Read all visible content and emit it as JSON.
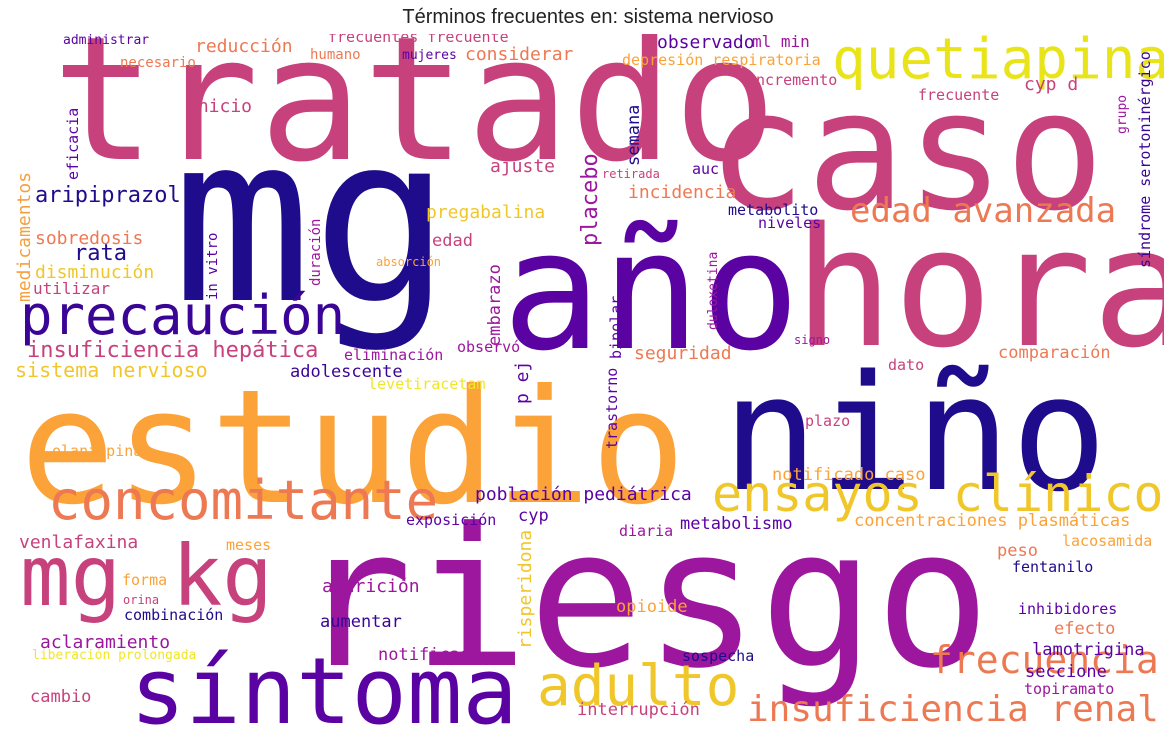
{
  "title": "Términos frecuentes en: sistema nervioso",
  "palette": [
    "#1f0c8c",
    "#5b02a3",
    "#9c179e",
    "#c7427c",
    "#ed7953",
    "#fba238",
    "#f0f921"
  ],
  "words": [
    {
      "text": "tratado",
      "color": "#c7427c"
    },
    {
      "text": "mg",
      "color": "#1f0c8c"
    },
    {
      "text": "caso",
      "color": "#c7427c"
    },
    {
      "text": "año",
      "color": "#5b02a3"
    },
    {
      "text": "hora",
      "color": "#c7427c"
    },
    {
      "text": "niño",
      "color": "#1f0c8c"
    },
    {
      "text": "estudio",
      "color": "#fba238"
    },
    {
      "text": "riesgo",
      "color": "#9c179e"
    },
    {
      "text": "síntoma",
      "color": "#5b02a3"
    },
    {
      "text": "mg kg",
      "color": "#c7427c"
    },
    {
      "text": "concomitante",
      "color": "#ed7953"
    },
    {
      "text": "precaución",
      "color": "#3a0596"
    },
    {
      "text": "quetiapina",
      "color": "#e8e419"
    },
    {
      "text": "ensayos clínico",
      "color": "#f0c72a"
    },
    {
      "text": "edad avanzada",
      "color": "#ed7953"
    },
    {
      "text": "adulto",
      "color": "#f0c72a"
    },
    {
      "text": "frecuencia",
      "color": "#ed7953"
    },
    {
      "text": "insuficiencia renal",
      "color": "#ed7953"
    },
    {
      "text": "insuficiencia hepática",
      "color": "#c7427c"
    },
    {
      "text": "sistema nervioso",
      "color": "#f0c72a"
    },
    {
      "text": "aripiprazol",
      "color": "#1f0c8c"
    },
    {
      "text": "sobredosis",
      "color": "#ed7953"
    },
    {
      "text": "rata",
      "color": "#1f0c8c"
    },
    {
      "text": "disminución",
      "color": "#f0c72a"
    },
    {
      "text": "utilizar",
      "color": "#c7427c"
    },
    {
      "text": "medicamentos",
      "color": "#f5a040"
    },
    {
      "text": "eficacia",
      "color": "#5b02a3"
    },
    {
      "text": "inicio",
      "color": "#c7427c"
    },
    {
      "text": "reducción",
      "color": "#ed7953"
    },
    {
      "text": "necesario",
      "color": "#ed7953"
    },
    {
      "text": "administrar",
      "color": "#5b02a3"
    },
    {
      "text": "humano",
      "color": "#ed7953"
    },
    {
      "text": "frecuentes frecuente",
      "color": "#c7427c"
    },
    {
      "text": "mujeres",
      "color": "#5b02a3"
    },
    {
      "text": "considerar",
      "color": "#ed7953"
    },
    {
      "text": "observado",
      "color": "#5b02a3"
    },
    {
      "text": "ml min",
      "color": "#9c179e"
    },
    {
      "text": "depresión respiratoria",
      "color": "#fba238"
    },
    {
      "text": "incremento",
      "color": "#c7427c"
    },
    {
      "text": "cyp d",
      "color": "#c7427c"
    },
    {
      "text": "frecuente",
      "color": "#c7427c"
    },
    {
      "text": "grupo",
      "color": "#9c179e"
    },
    {
      "text": "síndrome serotoninérgico",
      "color": "#3a0596"
    },
    {
      "text": "semana",
      "color": "#1f0c8c"
    },
    {
      "text": "ajuste",
      "color": "#c7427c"
    },
    {
      "text": "placebo",
      "color": "#9c179e"
    },
    {
      "text": "retirada",
      "color": "#c7427c"
    },
    {
      "text": "auc",
      "color": "#5b02a3"
    },
    {
      "text": "incidencia",
      "color": "#ed7953"
    },
    {
      "text": "pregabalina",
      "color": "#f0c72a"
    },
    {
      "text": "metabolito",
      "color": "#1f0c8c"
    },
    {
      "text": "niveles",
      "color": "#5b02a3"
    },
    {
      "text": "edad",
      "color": "#c7427c"
    },
    {
      "text": "absorción",
      "color": "#fba238"
    },
    {
      "text": "in vitro",
      "color": "#5b02a3"
    },
    {
      "text": "duración",
      "color": "#9c179e"
    },
    {
      "text": "embarazo",
      "color": "#9c179e"
    },
    {
      "text": "bipolar",
      "color": "#5b02a3"
    },
    {
      "text": "duloxetina",
      "color": "#9c179e"
    },
    {
      "text": "eliminación",
      "color": "#9c179e"
    },
    {
      "text": "observó",
      "color": "#9c179e"
    },
    {
      "text": "signo",
      "color": "#9c179e"
    },
    {
      "text": "seguridad",
      "color": "#ed7953"
    },
    {
      "text": "comparación",
      "color": "#ed7953"
    },
    {
      "text": "dato",
      "color": "#c7427c"
    },
    {
      "text": "adolescente",
      "color": "#3a0596"
    },
    {
      "text": "levetiracetam",
      "color": "#f0e62a"
    },
    {
      "text": "p ej",
      "color": "#5b02a3"
    },
    {
      "text": "trastorno",
      "color": "#5b02a3"
    },
    {
      "text": "plazo",
      "color": "#c7427c"
    },
    {
      "text": "olanzapina",
      "color": "#fba238"
    },
    {
      "text": "notificado caso",
      "color": "#fba238"
    },
    {
      "text": "población pediátrica",
      "color": "#5b02a3"
    },
    {
      "text": "cyp",
      "color": "#5b02a3"
    },
    {
      "text": "metabolismo",
      "color": "#5b02a3"
    },
    {
      "text": "concentraciones plasmáticas",
      "color": "#fba238"
    },
    {
      "text": "exposición",
      "color": "#5b02a3"
    },
    {
      "text": "risperidona",
      "color": "#f0c72a"
    },
    {
      "text": "diaria",
      "color": "#9c179e"
    },
    {
      "text": "venlafaxina",
      "color": "#c7427c"
    },
    {
      "text": "meses",
      "color": "#fba238"
    },
    {
      "text": "peso",
      "color": "#ed7953"
    },
    {
      "text": "lacosamida",
      "color": "#fba238"
    },
    {
      "text": "fentanilo",
      "color": "#1f0c8c"
    },
    {
      "text": "forma",
      "color": "#fba238"
    },
    {
      "text": "orina",
      "color": "#c7427c"
    },
    {
      "text": "combinación",
      "color": "#1f0c8c"
    },
    {
      "text": "aparición",
      "color": "#9c179e"
    },
    {
      "text": "opioide",
      "color": "#fba238"
    },
    {
      "text": "inhibidores",
      "color": "#5b02a3"
    },
    {
      "text": "efecto",
      "color": "#ed7953"
    },
    {
      "text": "aclaramiento",
      "color": "#9c179e"
    },
    {
      "text": "aumentar",
      "color": "#3a0596"
    },
    {
      "text": "lamotrigina",
      "color": "#5b02a3"
    },
    {
      "text": "liberación prolongada",
      "color": "#f0e62a"
    },
    {
      "text": "notificado",
      "color": "#9c179e"
    },
    {
      "text": "sospecha",
      "color": "#1f0c8c"
    },
    {
      "text": "seccione",
      "color": "#5b02a3"
    },
    {
      "text": "cambio",
      "color": "#c7427c"
    },
    {
      "text": "interrupción",
      "color": "#c7427c"
    },
    {
      "text": "topiramato",
      "color": "#9c179e"
    }
  ]
}
